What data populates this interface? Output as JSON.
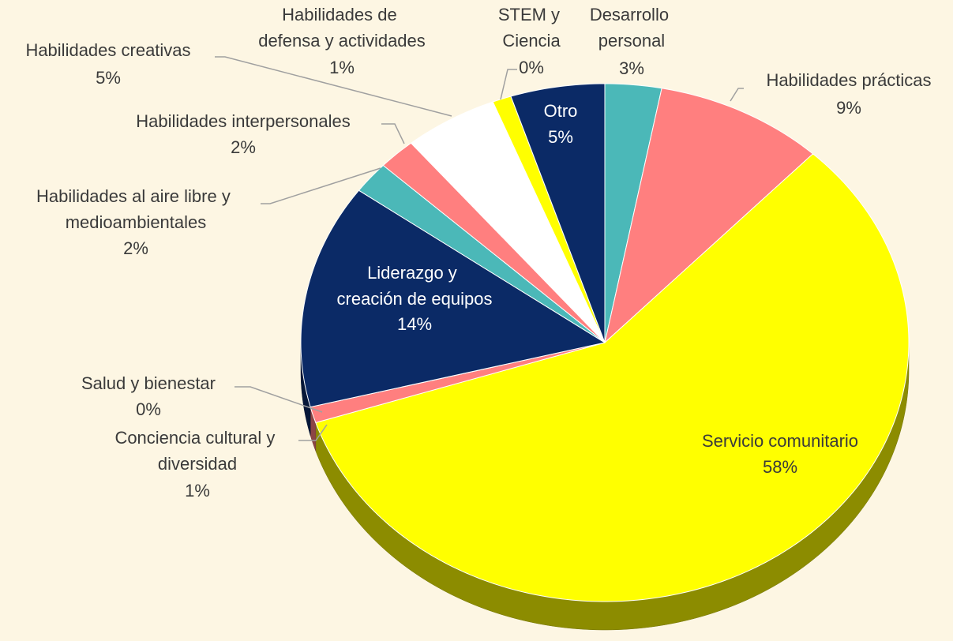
{
  "chart_data": {
    "type": "pie",
    "categories": [
      "Desarrollo personal",
      "Habilidades prácticas",
      "Servicio comunitario",
      "Conciencia cultural y diversidad",
      "Salud y bienestar",
      "Liderazgo y creación de equipos",
      "Habilidades al aire libre y medioambientales",
      "Habilidades interpersonales",
      "Habilidades creativas",
      "Habilidades de defensa y actividades",
      "STEM y Ciencia",
      "Otro"
    ],
    "values": [
      3,
      9,
      58,
      1,
      0,
      14,
      2,
      2,
      5,
      1,
      0,
      5
    ],
    "value_labels": [
      "3%",
      "9%",
      "58%",
      "1%",
      "0%",
      "14%",
      "2%",
      "2%",
      "5%",
      "1%",
      "0%",
      "5%"
    ],
    "colors": [
      "#4bb8b8",
      "#ff7f7f",
      "#ffff00",
      "#ff7f7f",
      "#6fa8dc",
      "#0b2a66",
      "#4bb8b8",
      "#ff7f7f",
      "#ffffff",
      "#ffff00",
      "#ffff00",
      "#0b2a66"
    ],
    "start_angle": 90,
    "direction": "clockwise",
    "view": "3d"
  }
}
